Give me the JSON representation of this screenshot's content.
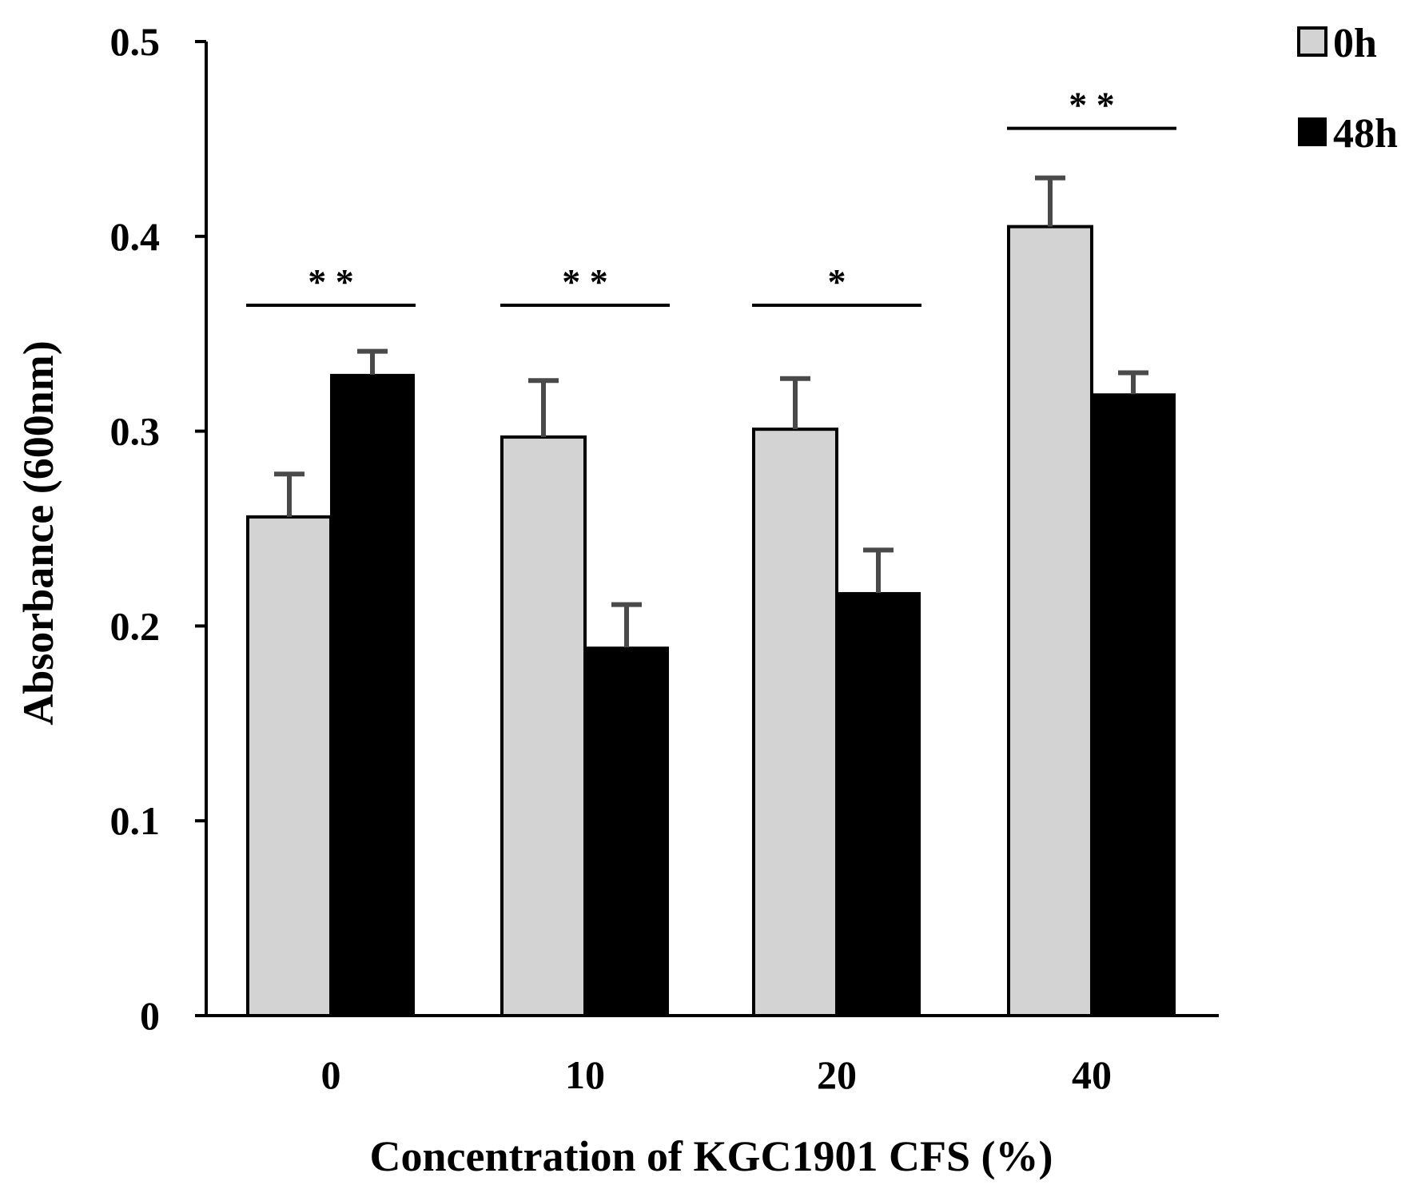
{
  "chart_data": {
    "type": "bar",
    "title": "",
    "xlabel": "Concentration of KGC1901 CFS (%)",
    "ylabel": "Absorbance (600nm)",
    "ylim": [
      0,
      0.5
    ],
    "yticks": [
      0,
      0.1,
      0.2,
      0.3,
      0.4,
      0.5
    ],
    "ytick_labels": [
      "0",
      "0.1",
      "0.2",
      "0.3",
      "0.4",
      "0.5"
    ],
    "categories": [
      "0",
      "10",
      "20",
      "40"
    ],
    "series": [
      {
        "name": "0h",
        "color": "#d3d3d3",
        "values": [
          0.256,
          0.297,
          0.301,
          0.405
        ],
        "errors": [
          0.022,
          0.029,
          0.026,
          0.025
        ]
      },
      {
        "name": "48h",
        "color": "#000000",
        "values": [
          0.329,
          0.189,
          0.217,
          0.319
        ],
        "errors": [
          0.012,
          0.022,
          0.022,
          0.011
        ]
      }
    ],
    "significance": [
      "* *",
      "* *",
      "*",
      "* *"
    ],
    "legend_position": "top-right",
    "grid": false
  }
}
